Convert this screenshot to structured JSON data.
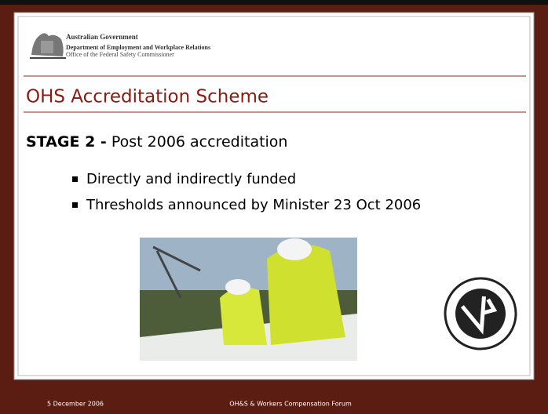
{
  "header": {
    "government": "Australian Government",
    "department": "Department of Employment and Workplace Relations",
    "office": "Office of the Federal Safety Commissioner"
  },
  "title": "OHS Accreditation Scheme",
  "stage": {
    "label": "STAGE 2 -",
    "text": "Post 2006 accreditation"
  },
  "bullets": [
    "Directly and indirectly funded",
    "Thresholds announced by Minister 23 Oct 2006"
  ],
  "footer": {
    "date": "5 December 2006",
    "event": "OH&S & Workers Compensation Forum"
  }
}
